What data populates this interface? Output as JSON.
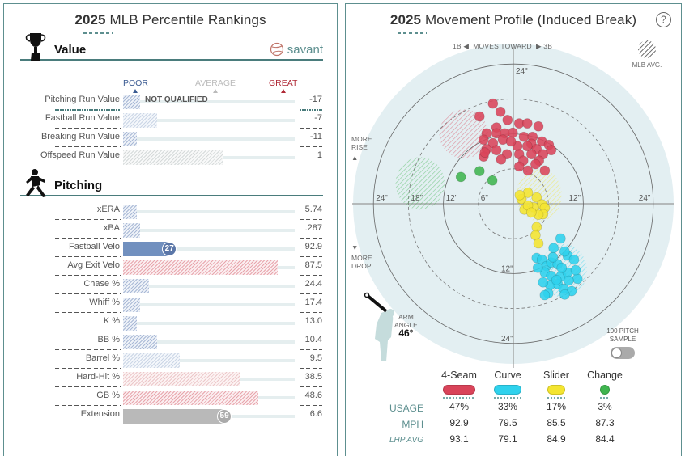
{
  "left_panel": {
    "title_year": "2025",
    "title_text": "MLB Percentile Rankings",
    "brand": "savant",
    "scale": {
      "poor": "POOR",
      "average": "AVERAGE",
      "great": "GREAT"
    },
    "scale_colors": {
      "poor": "#3b5b92",
      "average": "#bbbbbb",
      "great": "#b02a37"
    },
    "sections": [
      {
        "label": "Value",
        "icon": "trophy-icon",
        "metrics": [
          {
            "label": "Pitching Run Value",
            "value": "-17",
            "percentile": 10,
            "style": "hatch-blue",
            "note": "NOT QUALIFIED",
            "qualified": false
          },
          {
            "label": "Fastball Run Value",
            "value": "-7",
            "percentile": 20,
            "style": "hatch-lightblue"
          },
          {
            "label": "Breaking Run Value",
            "value": "-11",
            "percentile": 8,
            "style": "hatch-blue"
          },
          {
            "label": "Offspeed Run Value",
            "value": "1",
            "percentile": 58,
            "style": "hatch-gray"
          }
        ]
      },
      {
        "label": "Pitching",
        "icon": "pitcher-icon",
        "metrics": [
          {
            "label": "xERA",
            "value": "5.74",
            "percentile": 8,
            "style": "hatch-blue"
          },
          {
            "label": "xBA",
            "value": ".287",
            "percentile": 10,
            "style": "hatch-blue"
          },
          {
            "label": "Fastball Velo",
            "value": "92.9",
            "percentile": 27,
            "style": "solid-blue",
            "badge": "27",
            "badge_color": "#5b77a8"
          },
          {
            "label": "Avg Exit Velo",
            "value": "87.5",
            "percentile": 90,
            "style": "hatch-red"
          },
          {
            "label": "Chase %",
            "value": "24.4",
            "percentile": 15,
            "style": "hatch-blue"
          },
          {
            "label": "Whiff %",
            "value": "17.4",
            "percentile": 10,
            "style": "hatch-blue"
          },
          {
            "label": "K %",
            "value": "13.0",
            "percentile": 8,
            "style": "hatch-blue"
          },
          {
            "label": "BB %",
            "value": "10.4",
            "percentile": 20,
            "style": "hatch-blue"
          },
          {
            "label": "Barrel %",
            "value": "9.5",
            "percentile": 33,
            "style": "hatch-lightblue"
          },
          {
            "label": "Hard-Hit %",
            "value": "38.5",
            "percentile": 68,
            "style": "hatch-lightred"
          },
          {
            "label": "GB %",
            "value": "48.6",
            "percentile": 79,
            "style": "hatch-red"
          },
          {
            "label": "Extension",
            "value": "6.6",
            "percentile": 59,
            "style": "solid-gray",
            "badge": "59",
            "badge_color": "#aaaaaa"
          }
        ]
      }
    ]
  },
  "right_panel": {
    "title_year": "2025",
    "title_text": "Movement Profile (Induced Break)",
    "help_label": "?",
    "moves_toward": {
      "left": "1B",
      "middle": "MOVES TOWARD",
      "right": "3B"
    },
    "mlb_avg_label": "MLB AVG.",
    "more_rise": [
      "MORE",
      "RISE"
    ],
    "more_drop": [
      "MORE",
      "DROP"
    ],
    "arm_angle": {
      "label_1": "ARM",
      "label_2": "ANGLE",
      "value": "46°"
    },
    "sample_toggle": {
      "label_1": "100 PITCH",
      "label_2": "SAMPLE",
      "on": false
    },
    "legend": {
      "row_labels": [
        "USAGE",
        "MPH",
        "LHP AVG"
      ],
      "pitches": [
        {
          "name": "4-Seam",
          "color": "#d9445a",
          "usage": "47%",
          "mph": "92.9",
          "lhp_avg": "93.1"
        },
        {
          "name": "Curve",
          "color": "#2ed2ed",
          "usage": "33%",
          "mph": "79.5",
          "lhp_avg": "79.1"
        },
        {
          "name": "Slider",
          "color": "#f4e530",
          "usage": "17%",
          "mph": "85.5",
          "lhp_avg": "84.9"
        },
        {
          "name": "Change",
          "color": "#3fb54f",
          "usage": "3%",
          "mph": "87.3",
          "lhp_avg": "84.4"
        }
      ]
    }
  },
  "chart_data": {
    "type": "scatter",
    "title": "2025 Movement Profile (Induced Break)",
    "xlabel": "1B ◀ MOVES TOWARD ▶ 3B (inches)",
    "ylabel": "MORE RISE ▲ / ▼ MORE DROP (inches)",
    "xlim": [
      -24,
      24
    ],
    "ylim": [
      -24,
      24
    ],
    "rings_solid": [
      12,
      24
    ],
    "rings_dashed": [
      6,
      18
    ],
    "tick_labels": {
      "left": [
        "24\"",
        "18\"",
        "12\"",
        "6\""
      ],
      "right": [
        "12\"",
        "24\""
      ],
      "top": [
        "24\""
      ],
      "bottom": [
        "12\"",
        "24\""
      ]
    },
    "mlb_avg_zones": [
      {
        "pitch": "4-Seam",
        "x": -8.5,
        "y": 12,
        "rx": 4.2,
        "ry": 4.2
      },
      {
        "pitch": "Change",
        "x": -16,
        "y": 3.5,
        "rx": 4.2,
        "ry": 4.5
      },
      {
        "pitch": "Slider",
        "x": 4.4,
        "y": 1.5,
        "rx": 3.9,
        "ry": 4.5
      },
      {
        "pitch": "Curve",
        "x": 8.6,
        "y": -11.5,
        "rx": 4,
        "ry": 4.6
      }
    ],
    "series": [
      {
        "name": "4-Seam",
        "color": "#d9445a",
        "points": [
          [
            -3.5,
            17.2
          ],
          [
            -2.2,
            15.8
          ],
          [
            -1,
            14.4
          ],
          [
            -5.8,
            15
          ],
          [
            -2.9,
            13.1
          ],
          [
            1,
            13.8
          ],
          [
            2.4,
            13.8
          ],
          [
            4.3,
            13.3
          ],
          [
            -4.6,
            12.1
          ],
          [
            -2.9,
            12.1
          ],
          [
            -1.5,
            12.1
          ],
          [
            -0.1,
            12.2
          ],
          [
            1.8,
            11.5
          ],
          [
            3.3,
            11.5
          ],
          [
            4.9,
            10.7
          ],
          [
            3.1,
            10.3
          ],
          [
            -5.1,
            11
          ],
          [
            -3.5,
            10.4
          ],
          [
            -1.8,
            11
          ],
          [
            0.7,
            9.9
          ],
          [
            2.4,
            9.9
          ],
          [
            4,
            9.4
          ],
          [
            6.1,
            10.1
          ],
          [
            -4.6,
            9.4
          ],
          [
            -2.9,
            9.2
          ],
          [
            -1.1,
            8.5
          ],
          [
            1,
            8.5
          ],
          [
            3.1,
            8.5
          ],
          [
            5.1,
            8.5
          ],
          [
            6.5,
            9.2
          ],
          [
            -5.1,
            8.1
          ],
          [
            -2.1,
            7.6
          ],
          [
            1.7,
            7.4
          ],
          [
            4.4,
            7.4
          ],
          [
            1,
            6.4
          ],
          [
            2.5,
            5.7
          ],
          [
            5.4,
            5.7
          ],
          [
            -4.9,
            8.8
          ],
          [
            -0.4,
            10.7
          ],
          [
            3.8,
            6.8
          ]
        ]
      },
      {
        "name": "Change",
        "color": "#3fb54f",
        "points": [
          [
            -9.0,
            4.6
          ],
          [
            -5.8,
            5.6
          ],
          [
            -3.6,
            4.0
          ]
        ]
      },
      {
        "name": "Slider",
        "color": "#f4e530",
        "points": [
          [
            1.4,
            0.8
          ],
          [
            2.5,
            1.9
          ],
          [
            4,
            1.1
          ],
          [
            4.9,
            -0.1
          ],
          [
            1.9,
            -1
          ],
          [
            3.5,
            -0.6
          ],
          [
            5.4,
            -0.7
          ],
          [
            5.1,
            -1.8
          ],
          [
            4.3,
            -1.9
          ],
          [
            2.5,
            -0.3
          ],
          [
            4,
            -4
          ],
          [
            3.8,
            -5.4
          ],
          [
            4.3,
            -6.8
          ],
          [
            1.1,
            1.5
          ],
          [
            3.1,
            -1.5
          ]
        ]
      },
      {
        "name": "Curve",
        "color": "#2ed2ed",
        "points": [
          [
            8.1,
            -5.97
          ],
          [
            6.9,
            -7.6
          ],
          [
            4,
            -9.3
          ],
          [
            4.9,
            -9.6
          ],
          [
            5.7,
            -10.7
          ],
          [
            6.5,
            -10.1
          ],
          [
            7.6,
            -10.4
          ],
          [
            9.3,
            -8.9
          ],
          [
            8.8,
            -8.2
          ],
          [
            10.4,
            -9.6
          ],
          [
            5.4,
            -11.8
          ],
          [
            6.5,
            -12.4
          ],
          [
            8.2,
            -12.4
          ],
          [
            9.3,
            -11.8
          ],
          [
            11,
            -12.9
          ],
          [
            7.6,
            -13.8
          ],
          [
            6.3,
            -14
          ],
          [
            8.6,
            -14.6
          ],
          [
            10,
            -15
          ],
          [
            6.0,
            -15.4
          ],
          [
            5.1,
            -13.5
          ],
          [
            4.2,
            -11
          ],
          [
            6.8,
            -9.2
          ],
          [
            8.3,
            -11
          ],
          [
            5.4,
            -15.7
          ],
          [
            8.8,
            -15.6
          ],
          [
            9.5,
            -13.2
          ],
          [
            7.4,
            -13.1
          ],
          [
            10.7,
            -11.4
          ]
        ]
      }
    ]
  }
}
